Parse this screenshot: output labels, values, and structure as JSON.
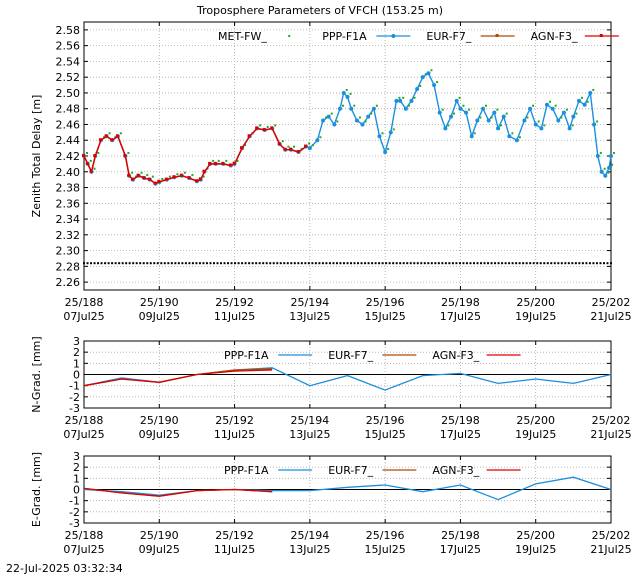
{
  "figure": {
    "title": "Troposphere Parameters of VFCH (153.25 m)",
    "timestamp": "22-Jul-2025 03:32:34"
  },
  "colors": {
    "met": "#22aa22",
    "ppp": "#1a8fe0",
    "eur": "#b24a00",
    "agn": "#dd0000",
    "grid": "#aaaaaa"
  },
  "x_ticks": [
    {
      "doy": "25/188",
      "date": "07Jul25"
    },
    {
      "doy": "25/190",
      "date": "09Jul25"
    },
    {
      "doy": "25/192",
      "date": "11Jul25"
    },
    {
      "doy": "25/194",
      "date": "13Jul25"
    },
    {
      "doy": "25/196",
      "date": "15Jul25"
    },
    {
      "doy": "25/198",
      "date": "17Jul25"
    },
    {
      "doy": "25/200",
      "date": "19Jul25"
    },
    {
      "doy": "25/202",
      "date": "21Jul25"
    }
  ],
  "chart_data": [
    {
      "type": "line",
      "ylabel": "Zenith Total Delay [m]",
      "xlim": [
        188,
        202
      ],
      "ylim": [
        2.25,
        2.59
      ],
      "yticks": [
        "2.26",
        "2.28",
        "2.30",
        "2.32",
        "2.34",
        "2.36",
        "2.38",
        "2.40",
        "2.42",
        "2.44",
        "2.46",
        "2.48",
        "2.50",
        "2.52",
        "2.54",
        "2.56",
        "2.58"
      ],
      "series": [
        {
          "name": "MET-FW_",
          "style": "dots",
          "x": [
            188,
            202
          ],
          "y": [
            2.284,
            2.284
          ]
        },
        {
          "name": "PPP-F1A",
          "style": "line",
          "x": [
            188,
            188.1,
            188.2,
            188.3,
            188.45,
            188.6,
            188.75,
            188.9,
            189.1,
            189.2,
            189.3,
            189.45,
            189.6,
            189.75,
            189.9,
            190,
            190.2,
            190.4,
            190.6,
            190.8,
            191,
            191.1,
            191.2,
            191.35,
            191.5,
            191.7,
            191.9,
            192,
            192.2,
            192.4,
            192.6,
            192.8,
            193,
            193.2,
            193.35,
            193.5,
            193.7,
            193.9,
            194,
            194.2,
            194.35,
            194.5,
            194.65,
            194.8,
            194.9,
            195,
            195.1,
            195.25,
            195.4,
            195.55,
            195.7,
            195.85,
            196,
            196.15,
            196.3,
            196.4,
            196.55,
            196.7,
            196.85,
            197,
            197.15,
            197.3,
            197.45,
            197.6,
            197.75,
            197.9,
            198,
            198.15,
            198.3,
            198.45,
            198.6,
            198.75,
            198.9,
            199,
            199.15,
            199.3,
            199.5,
            199.7,
            199.85,
            200,
            200.15,
            200.3,
            200.45,
            200.6,
            200.75,
            200.9,
            201,
            201.15,
            201.3,
            201.45,
            201.55,
            201.65,
            201.75,
            201.85,
            201.95,
            202
          ],
          "y": [
            2.42,
            2.41,
            2.4,
            2.42,
            2.44,
            2.445,
            2.44,
            2.445,
            2.42,
            2.395,
            2.39,
            2.395,
            2.392,
            2.39,
            2.385,
            2.387,
            2.39,
            2.393,
            2.395,
            2.392,
            2.388,
            2.39,
            2.4,
            2.41,
            2.41,
            2.41,
            2.408,
            2.41,
            2.43,
            2.445,
            2.455,
            2.453,
            2.455,
            2.435,
            2.428,
            2.428,
            2.425,
            2.432,
            2.43,
            2.44,
            2.465,
            2.47,
            2.46,
            2.48,
            2.5,
            2.495,
            2.48,
            2.465,
            2.46,
            2.47,
            2.48,
            2.445,
            2.425,
            2.45,
            2.49,
            2.49,
            2.48,
            2.49,
            2.505,
            2.52,
            2.525,
            2.51,
            2.475,
            2.455,
            2.47,
            2.49,
            2.48,
            2.475,
            2.445,
            2.465,
            2.48,
            2.465,
            2.475,
            2.455,
            2.47,
            2.445,
            2.44,
            2.465,
            2.48,
            2.46,
            2.455,
            2.485,
            2.48,
            2.465,
            2.475,
            2.455,
            2.47,
            2.49,
            2.485,
            2.5,
            2.46,
            2.42,
            2.4,
            2.395,
            2.405,
            2.42
          ]
        },
        {
          "name": "EUR-F7_",
          "style": "line",
          "x": [
            188,
            188.1,
            188.2,
            188.3,
            188.45,
            188.6,
            188.75,
            188.9,
            189.1,
            189.2,
            189.3,
            189.45,
            189.6,
            189.75,
            189.9,
            190,
            190.2,
            190.4,
            190.6,
            190.8,
            191,
            191.1,
            191.2,
            191.35,
            191.5,
            191.7,
            191.9,
            192,
            192.2,
            192.4,
            192.6,
            192.8,
            193,
            193.2,
            193.35,
            193.5,
            193.7,
            193.9
          ],
          "y": [
            2.42,
            2.41,
            2.4,
            2.42,
            2.44,
            2.445,
            2.44,
            2.445,
            2.42,
            2.395,
            2.39,
            2.395,
            2.392,
            2.39,
            2.385,
            2.387,
            2.39,
            2.393,
            2.395,
            2.392,
            2.388,
            2.39,
            2.4,
            2.41,
            2.41,
            2.41,
            2.408,
            2.41,
            2.43,
            2.445,
            2.455,
            2.453,
            2.455,
            2.435,
            2.428,
            2.428,
            2.425,
            2.432
          ]
        },
        {
          "name": "AGN-F3_",
          "style": "line",
          "x": [
            188,
            188.1,
            188.2,
            188.3,
            188.45,
            188.6,
            188.75,
            188.9,
            189.1,
            189.2,
            189.3,
            189.45,
            189.6,
            189.75,
            189.9,
            190,
            190.2,
            190.4,
            190.6,
            190.8,
            191,
            191.1,
            191.2,
            191.35,
            191.5,
            191.7,
            191.9,
            192,
            192.2,
            192.4,
            192.6,
            192.8,
            193,
            193.2,
            193.35,
            193.5,
            193.7,
            193.9
          ],
          "y": [
            2.42,
            2.41,
            2.4,
            2.42,
            2.44,
            2.445,
            2.44,
            2.445,
            2.42,
            2.395,
            2.39,
            2.395,
            2.392,
            2.39,
            2.385,
            2.387,
            2.39,
            2.393,
            2.395,
            2.392,
            2.388,
            2.39,
            2.4,
            2.41,
            2.41,
            2.41,
            2.408,
            2.41,
            2.43,
            2.445,
            2.455,
            2.453,
            2.455,
            2.435,
            2.428,
            2.428,
            2.425,
            2.432
          ]
        }
      ]
    },
    {
      "type": "line",
      "ylabel": "N-Grad. [mm]",
      "xlim": [
        188,
        202
      ],
      "ylim": [
        -3,
        3
      ],
      "yticks": [
        "-3",
        "-2",
        "-1",
        "0",
        "1",
        "2",
        "3"
      ],
      "series": [
        {
          "name": "PPP-F1A",
          "x": [
            188,
            189,
            190,
            191,
            192,
            193,
            194,
            195,
            196,
            197,
            198,
            199,
            200,
            201,
            202
          ],
          "y": [
            -1.0,
            -0.3,
            -0.7,
            0.0,
            0.4,
            0.6,
            -1.0,
            -0.1,
            -1.4,
            -0.1,
            0.1,
            -0.8,
            -0.4,
            -0.8,
            0.0
          ]
        },
        {
          "name": "EUR-F7_",
          "x": [
            188,
            189,
            190,
            191,
            192,
            193
          ],
          "y": [
            -1.0,
            -0.4,
            -0.7,
            0.0,
            0.4,
            0.5
          ]
        },
        {
          "name": "AGN-F3_",
          "x": [
            188,
            189,
            190,
            191,
            192,
            193
          ],
          "y": [
            -1.0,
            -0.4,
            -0.7,
            0.0,
            0.3,
            0.4
          ]
        }
      ]
    },
    {
      "type": "line",
      "ylabel": "E-Grad. [mm]",
      "xlim": [
        188,
        202
      ],
      "ylim": [
        -3,
        3
      ],
      "yticks": [
        "-3",
        "-2",
        "-1",
        "0",
        "1",
        "2",
        "3"
      ],
      "series": [
        {
          "name": "PPP-F1A",
          "x": [
            188,
            189,
            190,
            191,
            192,
            193,
            194,
            195,
            196,
            197,
            198,
            199,
            200,
            201,
            202
          ],
          "y": [
            0.0,
            -0.2,
            -0.5,
            -0.1,
            0.0,
            -0.1,
            -0.1,
            0.2,
            0.4,
            -0.2,
            0.4,
            -0.9,
            0.5,
            1.1,
            0.0
          ]
        },
        {
          "name": "EUR-F7_",
          "x": [
            188,
            189,
            190,
            191,
            192,
            193
          ],
          "y": [
            0.1,
            -0.3,
            -0.6,
            -0.1,
            0.0,
            -0.2
          ]
        },
        {
          "name": "AGN-F3_",
          "x": [
            188,
            189,
            190,
            191,
            192,
            193
          ],
          "y": [
            0.1,
            -0.3,
            -0.6,
            -0.1,
            0.0,
            -0.2
          ]
        }
      ]
    }
  ]
}
